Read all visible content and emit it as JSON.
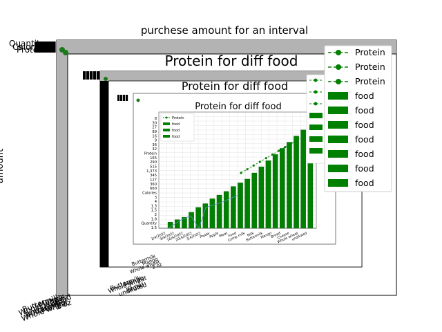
{
  "chart_data": {
    "type": "line",
    "title": "purchese amount for an interval",
    "ylabel": "amount",
    "xlabel": "",
    "grid": false,
    "legend_placement": "top-right",
    "series": [
      {
        "name": "Protein",
        "kind": "line",
        "color": "#008000"
      },
      {
        "name": "Protein",
        "kind": "line",
        "color": "#008000"
      },
      {
        "name": "Protein",
        "kind": "line",
        "color": "#008000"
      },
      {
        "name": "food",
        "kind": "bar",
        "color": "#008000"
      },
      {
        "name": "food",
        "kind": "bar",
        "color": "#008000"
      },
      {
        "name": "food",
        "kind": "bar",
        "color": "#008000"
      },
      {
        "name": "food",
        "kind": "bar",
        "color": "#008000"
      },
      {
        "name": "food",
        "kind": "bar",
        "color": "#008000"
      },
      {
        "name": "food",
        "kind": "bar",
        "color": "#008000"
      },
      {
        "name": "food",
        "kind": "bar",
        "color": "#008000"
      }
    ],
    "y_tick_labels_visible": [
      "Quantity",
      "Calories",
      "Protein"
    ],
    "x_tick_labels_visible": [
      "Buttermilk",
      "Mango",
      "Whole wheat",
      "2 oz",
      "Bread",
      "undiluted"
    ]
  },
  "embedded": {
    "title_1": "Protein for diff food",
    "title_2": "Protein for diff food",
    "title_3": "Protein for diff food",
    "legend_innermost": [
      "Protein",
      "food",
      "food",
      "food"
    ],
    "legend_mid": [
      "Protein",
      "Protein",
      "Protein",
      "food",
      "food",
      "food",
      "food"
    ],
    "inner_y_ticks": [
      "8",
      "30",
      "27",
      "89",
      "16",
      "9",
      "36",
      "32",
      "Protein",
      "165",
      "290",
      "515",
      "1,373",
      "345",
      "127",
      "360",
      "660",
      "Calories",
      "3",
      "4",
      "1.3",
      "1.5",
      "2",
      "1.8",
      "Quantity",
      "1.5"
    ],
    "inner_x_ticks": [
      "2/4/2022",
      "9/4/2022",
      "16/4/2022",
      "20/4/2022",
      "3/4/2022",
      "Poppy",
      "Apple",
      "Meat",
      "Food",
      "Comp milk",
      "Milk",
      "Buttermilk",
      "Mango",
      "Bread",
      "Cheese",
      "Whole wheat",
      "undiluted"
    ],
    "inner_bar_values": [
      0.5,
      0.7,
      0.9,
      1.3,
      1.7,
      2.0,
      2.4,
      2.7,
      3.0,
      3.4,
      3.7,
      4.0,
      4.5,
      5.0,
      5.5,
      6.0,
      6.5,
      7.0,
      7.5,
      8.0,
      8.6
    ],
    "inner_line_values": [
      9.5,
      9.8,
      10.1,
      10.4,
      10.7,
      11.0,
      11.3,
      11.6,
      11.9,
      12.2,
      12.5
    ],
    "outer_x_tick_fragments": [
      "2 oz",
      "Bread, undiluted",
      "Buttermilk",
      "Mango"
    ]
  }
}
